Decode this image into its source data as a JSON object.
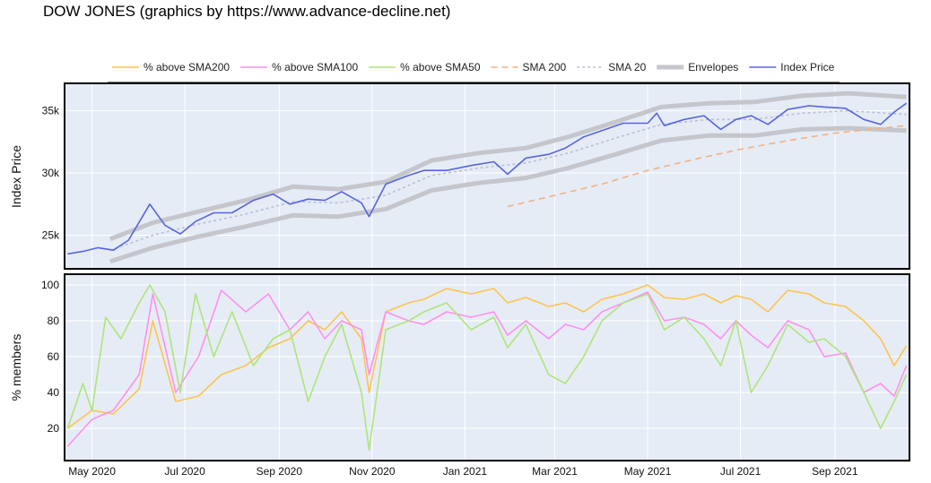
{
  "title": "DOW JONES (graphics by https://www.advance-decline.net)",
  "colors": {
    "plot_bg": "#e5ecf6",
    "sma200_pct": "#ffc34d",
    "sma100_pct": "#ff8ff0",
    "sma50_pct": "#aee57a",
    "sma200_line": "#f4b183",
    "sma20_line": "#b9bfd8",
    "envelopes": "#c4c6cc",
    "index_price": "#5b64e0"
  },
  "chart_data": [
    {
      "type": "line",
      "panel": "top",
      "ylabel": "Index Price",
      "ylim": [
        22300,
        37200
      ],
      "yticks": [
        25000,
        30000,
        35000
      ],
      "ytick_labels": [
        "25k",
        "30k",
        "35k"
      ],
      "grid": true,
      "x_axis": {
        "type": "date",
        "range": [
          "2020-04-13",
          "2021-10-20"
        ],
        "ticks": [
          "2020-05-01",
          "2020-07-01",
          "2020-09-01",
          "2020-11-01",
          "2021-01-01",
          "2021-03-01",
          "2021-05-01",
          "2021-07-01",
          "2021-09-01"
        ],
        "tick_labels": [
          "May 2020",
          "Jul 2020",
          "Sep 2020",
          "Nov 2020",
          "Jan 2021",
          "Mar 2021",
          "May 2021",
          "Jul 2021",
          "Sep 2021"
        ]
      },
      "series": [
        {
          "name": "Index Price",
          "key": "index_price",
          "x": [
            "2020-04-15",
            "2020-04-25",
            "2020-05-05",
            "2020-05-15",
            "2020-05-25",
            "2020-06-08",
            "2020-06-18",
            "2020-06-28",
            "2020-07-08",
            "2020-07-20",
            "2020-08-01",
            "2020-08-15",
            "2020-08-28",
            "2020-09-08",
            "2020-09-20",
            "2020-10-01",
            "2020-10-12",
            "2020-10-25",
            "2020-10-30",
            "2020-11-10",
            "2020-11-25",
            "2020-12-05",
            "2020-12-20",
            "2021-01-05",
            "2021-01-20",
            "2021-01-29",
            "2021-02-10",
            "2021-02-25",
            "2021-03-08",
            "2021-03-20",
            "2021-04-01",
            "2021-04-15",
            "2021-05-01",
            "2021-05-07",
            "2021-05-12",
            "2021-05-25",
            "2021-06-07",
            "2021-06-18",
            "2021-06-28",
            "2021-07-08",
            "2021-07-19",
            "2021-08-01",
            "2021-08-15",
            "2021-08-25",
            "2021-09-08",
            "2021-09-20",
            "2021-10-01",
            "2021-10-10",
            "2021-10-18"
          ],
          "y": [
            23500,
            23700,
            24000,
            23800,
            24600,
            27500,
            25800,
            25100,
            26100,
            26800,
            26800,
            27800,
            28300,
            27500,
            27900,
            27800,
            28500,
            27600,
            26500,
            29100,
            29800,
            30200,
            30200,
            30600,
            30900,
            29900,
            31200,
            31500,
            32000,
            32900,
            33400,
            34000,
            34000,
            34800,
            33800,
            34300,
            34600,
            33500,
            34300,
            34600,
            33900,
            35100,
            35400,
            35300,
            35200,
            34300,
            33900,
            34900,
            35600
          ]
        },
        {
          "name": "SMA 20",
          "key": "sma20_line",
          "dash": "3,3",
          "x": [
            "2020-05-13",
            "2020-06-10",
            "2020-07-10",
            "2020-08-10",
            "2020-09-10",
            "2020-10-10",
            "2020-11-10",
            "2020-12-10",
            "2021-01-10",
            "2021-02-10",
            "2021-03-10",
            "2021-04-10",
            "2021-05-10",
            "2021-06-10",
            "2021-07-10",
            "2021-08-10",
            "2021-09-10",
            "2021-10-18"
          ],
          "y": [
            23800,
            25000,
            25900,
            26700,
            27700,
            27600,
            28200,
            29800,
            30400,
            30800,
            31600,
            32800,
            33900,
            34300,
            34300,
            34800,
            35000,
            34700
          ]
        },
        {
          "name": "SMA 200",
          "key": "sma200_line",
          "dash": "7,5",
          "x": [
            "2021-01-29",
            "2021-03-01",
            "2021-04-01",
            "2021-05-01",
            "2021-06-01",
            "2021-07-01",
            "2021-08-01",
            "2021-09-01",
            "2021-10-18"
          ],
          "y": [
            27300,
            28200,
            29100,
            30200,
            31100,
            31900,
            32600,
            33200,
            33800
          ]
        },
        {
          "name": "Envelopes",
          "key": "envelopes",
          "group": "upper",
          "x": [
            "2020-05-13",
            "2020-06-10",
            "2020-07-10",
            "2020-08-10",
            "2020-09-10",
            "2020-10-10",
            "2020-11-10",
            "2020-12-10",
            "2021-01-10",
            "2021-02-10",
            "2021-03-10",
            "2021-04-10",
            "2021-05-10",
            "2021-06-10",
            "2021-07-10",
            "2021-08-10",
            "2021-09-10",
            "2021-10-18"
          ],
          "y": [
            24700,
            26000,
            26900,
            27800,
            28900,
            28700,
            29300,
            31000,
            31600,
            32000,
            32900,
            34100,
            35300,
            35600,
            35700,
            36200,
            36400,
            36100
          ]
        },
        {
          "name": "",
          "key": "envelopes",
          "group": "lower",
          "x": [
            "2020-05-13",
            "2020-06-10",
            "2020-07-10",
            "2020-08-10",
            "2020-09-10",
            "2020-10-10",
            "2020-11-10",
            "2020-12-10",
            "2021-01-10",
            "2021-02-10",
            "2021-03-10",
            "2021-04-10",
            "2021-05-10",
            "2021-06-10",
            "2021-07-10",
            "2021-08-10",
            "2021-09-10",
            "2021-10-18"
          ],
          "y": [
            22900,
            24000,
            24900,
            25700,
            26600,
            26500,
            27100,
            28600,
            29200,
            29600,
            30400,
            31500,
            32600,
            33000,
            33000,
            33500,
            33600,
            33400
          ]
        }
      ]
    },
    {
      "type": "line",
      "panel": "bottom",
      "ylabel": "% members",
      "ylim": [
        2,
        106
      ],
      "yticks": [
        20,
        40,
        60,
        80,
        100
      ],
      "ytick_labels": [
        "20",
        "40",
        "60",
        "80",
        "100"
      ],
      "grid": true,
      "series": [
        {
          "name": "% above SMA200",
          "key": "sma200_pct",
          "x": [
            "2020-04-15",
            "2020-05-01",
            "2020-05-15",
            "2020-06-01",
            "2020-06-10",
            "2020-06-25",
            "2020-07-10",
            "2020-07-25",
            "2020-08-10",
            "2020-08-25",
            "2020-09-08",
            "2020-09-20",
            "2020-10-01",
            "2020-10-12",
            "2020-10-25",
            "2020-10-30",
            "2020-11-10",
            "2020-11-25",
            "2020-12-05",
            "2020-12-20",
            "2021-01-05",
            "2021-01-20",
            "2021-01-29",
            "2021-02-10",
            "2021-02-25",
            "2021-03-08",
            "2021-03-20",
            "2021-04-01",
            "2021-04-15",
            "2021-05-01",
            "2021-05-12",
            "2021-05-25",
            "2021-06-07",
            "2021-06-18",
            "2021-06-28",
            "2021-07-08",
            "2021-07-19",
            "2021-08-01",
            "2021-08-15",
            "2021-08-25",
            "2021-09-08",
            "2021-09-20",
            "2021-10-01",
            "2021-10-10",
            "2021-10-18"
          ],
          "y": [
            20,
            30,
            28,
            42,
            80,
            35,
            38,
            50,
            55,
            65,
            70,
            80,
            75,
            85,
            70,
            40,
            85,
            90,
            92,
            98,
            95,
            98,
            90,
            93,
            88,
            90,
            85,
            92,
            95,
            100,
            93,
            92,
            95,
            90,
            94,
            92,
            85,
            97,
            95,
            90,
            88,
            80,
            70,
            55,
            66
          ]
        },
        {
          "name": "% above SMA100",
          "key": "sma100_pct",
          "x": [
            "2020-04-15",
            "2020-05-01",
            "2020-05-15",
            "2020-06-01",
            "2020-06-10",
            "2020-06-25",
            "2020-07-10",
            "2020-07-25",
            "2020-08-10",
            "2020-08-25",
            "2020-09-08",
            "2020-09-20",
            "2020-10-01",
            "2020-10-12",
            "2020-10-25",
            "2020-10-30",
            "2020-11-10",
            "2020-11-25",
            "2020-12-05",
            "2020-12-20",
            "2021-01-05",
            "2021-01-20",
            "2021-01-29",
            "2021-02-10",
            "2021-02-25",
            "2021-03-08",
            "2021-03-20",
            "2021-04-01",
            "2021-04-15",
            "2021-05-01",
            "2021-05-12",
            "2021-05-25",
            "2021-06-07",
            "2021-06-18",
            "2021-06-28",
            "2021-07-08",
            "2021-07-19",
            "2021-08-01",
            "2021-08-15",
            "2021-08-25",
            "2021-09-08",
            "2021-09-20",
            "2021-10-01",
            "2021-10-10",
            "2021-10-18"
          ],
          "y": [
            10,
            25,
            30,
            50,
            95,
            40,
            60,
            97,
            85,
            95,
            75,
            85,
            70,
            80,
            75,
            50,
            85,
            80,
            78,
            85,
            82,
            85,
            72,
            80,
            70,
            78,
            75,
            85,
            90,
            96,
            80,
            82,
            78,
            70,
            80,
            72,
            65,
            80,
            75,
            60,
            62,
            40,
            45,
            38,
            55
          ]
        },
        {
          "name": "% above SMA50",
          "key": "sma50_pct",
          "x": [
            "2020-04-15",
            "2020-04-25",
            "2020-05-01",
            "2020-05-10",
            "2020-05-20",
            "2020-06-01",
            "2020-06-08",
            "2020-06-18",
            "2020-06-28",
            "2020-07-08",
            "2020-07-20",
            "2020-08-01",
            "2020-08-15",
            "2020-08-28",
            "2020-09-08",
            "2020-09-20",
            "2020-10-01",
            "2020-10-12",
            "2020-10-25",
            "2020-10-30",
            "2020-11-10",
            "2020-11-25",
            "2020-12-05",
            "2020-12-20",
            "2021-01-05",
            "2021-01-20",
            "2021-01-29",
            "2021-02-10",
            "2021-02-25",
            "2021-03-08",
            "2021-03-20",
            "2021-04-01",
            "2021-04-15",
            "2021-05-01",
            "2021-05-12",
            "2021-05-25",
            "2021-06-07",
            "2021-06-18",
            "2021-06-28",
            "2021-07-08",
            "2021-07-19",
            "2021-08-01",
            "2021-08-15",
            "2021-08-25",
            "2021-09-08",
            "2021-09-20",
            "2021-10-01",
            "2021-10-10",
            "2021-10-18"
          ],
          "y": [
            20,
            45,
            30,
            82,
            70,
            90,
            100,
            85,
            40,
            95,
            60,
            85,
            55,
            70,
            75,
            35,
            60,
            78,
            40,
            8,
            75,
            80,
            85,
            90,
            75,
            82,
            65,
            78,
            50,
            45,
            60,
            80,
            90,
            95,
            75,
            82,
            70,
            55,
            80,
            40,
            55,
            78,
            68,
            70,
            60,
            40,
            20,
            35,
            50
          ]
        }
      ]
    }
  ],
  "legend": [
    {
      "key": "sma200_pct",
      "label": "% above SMA200",
      "style": "solid"
    },
    {
      "key": "sma100_pct",
      "label": "% above SMA100",
      "style": "solid"
    },
    {
      "key": "sma50_pct",
      "label": "% above SMA50",
      "style": "solid"
    },
    {
      "key": "sma200_line",
      "label": "SMA 200",
      "style": "dash"
    },
    {
      "key": "sma20_line",
      "label": "SMA 20",
      "style": "dot"
    },
    {
      "key": "envelopes",
      "label": "Envelopes",
      "style": "thick"
    },
    {
      "key": "index_price",
      "label": "Index Price",
      "style": "solid"
    }
  ]
}
